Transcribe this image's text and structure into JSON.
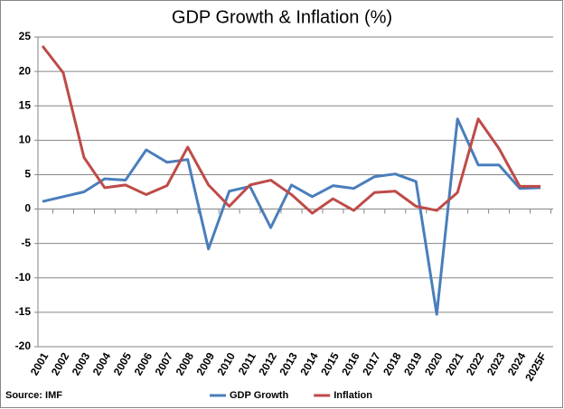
{
  "chart_data": {
    "type": "line",
    "title": "GDP Growth & Inflation (%)",
    "source": "Source: IMF",
    "categories": [
      "2001",
      "2002",
      "2003",
      "2004",
      "2005",
      "2006",
      "2007",
      "2008",
      "2009",
      "2010",
      "2011",
      "2012",
      "2013",
      "2014",
      "2015",
      "2016",
      "2017",
      "2018",
      "2019",
      "2020",
      "2021",
      "2022",
      "2023",
      "2024",
      "2025F"
    ],
    "series": [
      {
        "name": "GDP Growth",
        "color": "#4a7ebb",
        "values": [
          1.1,
          1.8,
          2.5,
          4.4,
          4.2,
          8.6,
          6.8,
          7.2,
          -5.8,
          2.6,
          3.3,
          -2.7,
          3.5,
          1.8,
          3.4,
          3.0,
          4.7,
          5.1,
          4.0,
          -15.3,
          13.1,
          6.4,
          6.4,
          3.0,
          3.1
        ]
      },
      {
        "name": "Inflation",
        "color": "#be4b48",
        "values": [
          23.7,
          19.8,
          7.5,
          3.1,
          3.5,
          2.1,
          3.4,
          9.0,
          3.5,
          0.4,
          3.5,
          4.2,
          2.1,
          -0.6,
          1.5,
          -0.2,
          2.4,
          2.6,
          0.4,
          -0.2,
          2.4,
          13.1,
          8.8,
          3.3,
          3.3
        ]
      }
    ],
    "ylim": [
      -20,
      25
    ],
    "yticks": [
      -20,
      -15,
      -10,
      -5,
      0,
      5,
      10,
      15,
      20,
      25
    ],
    "grid": true,
    "legend": "bottom"
  }
}
